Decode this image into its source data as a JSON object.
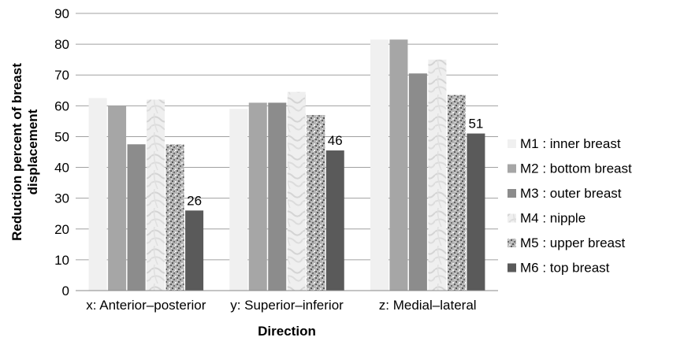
{
  "chart_data": {
    "type": "bar",
    "title": "",
    "xlabel": "Direction",
    "ylabel": "Reduction percent of breast displacement",
    "ylabel_lines": [
      "Reduction percent of breast",
      "displacement"
    ],
    "ylim": [
      0,
      90
    ],
    "yticks": [
      "0",
      "10",
      "20",
      "30",
      "40",
      "50",
      "60",
      "70",
      "80",
      "90"
    ],
    "grid": true,
    "legend_position": "right",
    "categories": [
      "x: Anterior–posterior",
      "y: Superior–inferior",
      "z: Medial–lateral"
    ],
    "series": [
      {
        "name": "M1 : inner breast",
        "values": [
          62.5,
          59,
          81.5
        ],
        "color": "#f0f0f0",
        "pattern": "solid"
      },
      {
        "name": "M2 : bottom breast",
        "values": [
          60,
          61,
          81.5
        ],
        "color": "#a6a6a6",
        "pattern": "solid"
      },
      {
        "name": "M3 : outer breast",
        "values": [
          47.5,
          61,
          70.5
        ],
        "color": "#8c8c8c",
        "pattern": "solid"
      },
      {
        "name": "M4 : nipple",
        "values": [
          62,
          64.5,
          75
        ],
        "color": "#ececec",
        "pattern": "marble"
      },
      {
        "name": "M5 : upper breast",
        "values": [
          47.5,
          57,
          63.5
        ],
        "color": "#9a9a9a",
        "pattern": "speckle"
      },
      {
        "name": "M6 : top breast",
        "values": [
          26,
          45.5,
          51
        ],
        "color": "#5a5a5a",
        "pattern": "solid"
      }
    ],
    "data_labels": [
      {
        "series": 5,
        "category": 0,
        "text": "26"
      },
      {
        "series": 5,
        "category": 1,
        "text": "46"
      },
      {
        "series": 5,
        "category": 2,
        "text": "51"
      }
    ]
  }
}
